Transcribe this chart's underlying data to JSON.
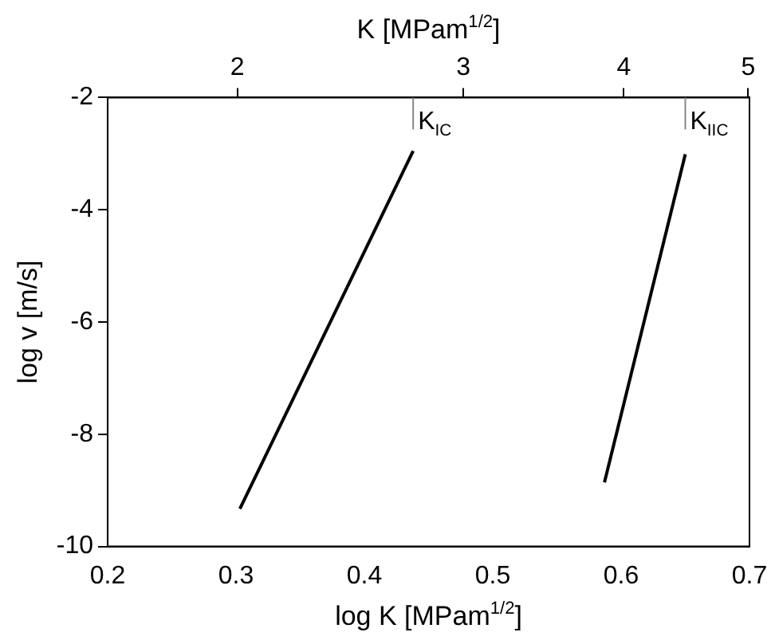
{
  "chart_data": {
    "type": "line",
    "xlabel": "log K [MPam$^{1/2}$]",
    "ylabel": "log v [m/s]",
    "x2label": "K [MPam$^{1/2}$]",
    "xlim": [
      0.2,
      0.7
    ],
    "xticks": [
      0.2,
      0.3,
      0.4,
      0.5,
      0.6,
      0.7
    ],
    "ylim": [
      -10,
      -2
    ],
    "yticks": [
      -10,
      -8,
      -6,
      -4,
      -2
    ],
    "x2lim": [
      1.585,
      5.012
    ],
    "x2ticks": [
      2,
      3,
      4,
      5
    ],
    "log": "x2",
    "series": [
      {
        "color": "#000000",
        "x": [
          0.303,
          0.438
        ],
        "values": [
          -9.33,
          -2.95
        ]
      },
      {
        "color": "#000000",
        "x": [
          0.587,
          0.65
        ],
        "values": [
          -8.86,
          -3.01
        ]
      }
    ],
    "ref_lines": [
      {
        "axis": "x",
        "value": 0.438,
        "label": "K$_{IC}$",
        "color": "#888888"
      },
      {
        "axis": "x",
        "value": 0.65,
        "label": "K$_{IIC}$",
        "color": "#888888"
      }
    ],
    "marker": "none",
    "line_style": "solid",
    "grid": false,
    "legend": false
  }
}
